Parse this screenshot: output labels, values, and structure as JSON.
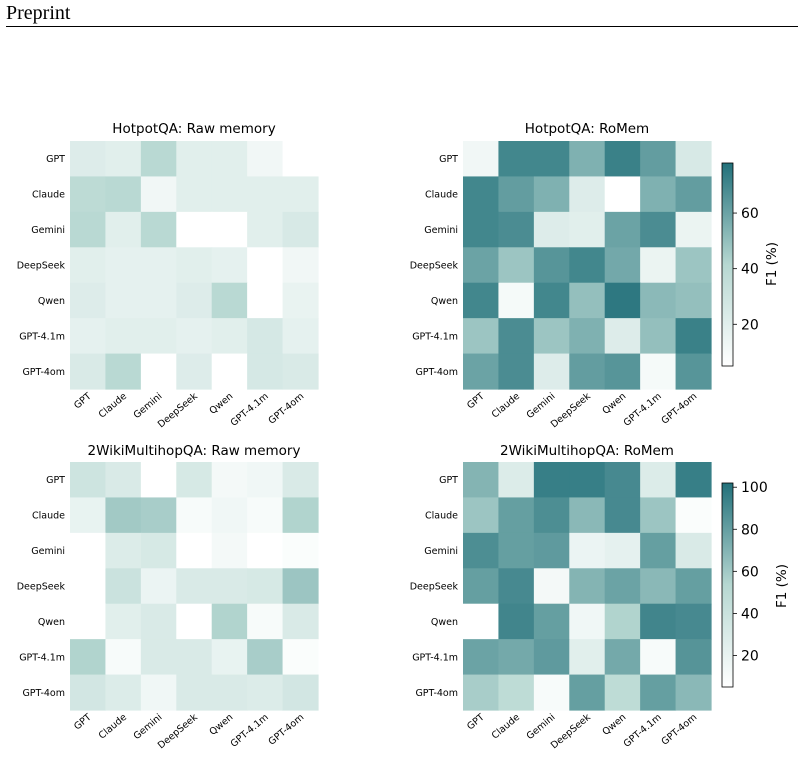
{
  "header": {
    "label": "Preprint"
  },
  "colorscale": {
    "low": "#ffffff",
    "mid": "#b6d7d1",
    "high": "#22707a"
  },
  "chart_data": [
    {
      "type": "heatmap",
      "title": "HotpotQA: Raw memory",
      "rows": [
        "GPT",
        "Claude",
        "Gemini",
        "DeepSeek",
        "Qwen",
        "GPT-4.1m",
        "GPT-4om"
      ],
      "cols": [
        "GPT",
        "Claude",
        "Gemini",
        "DeepSeek",
        "Qwen",
        "GPT-4.1m",
        "GPT-4om"
      ],
      "values": [
        [
          22,
          20,
          40,
          20,
          20,
          12,
          5
        ],
        [
          38,
          40,
          12,
          20,
          20,
          20,
          20
        ],
        [
          40,
          20,
          40,
          3,
          5,
          20,
          25
        ],
        [
          20,
          18,
          18,
          20,
          18,
          3,
          12
        ],
        [
          22,
          18,
          18,
          22,
          40,
          3,
          16
        ],
        [
          18,
          20,
          20,
          18,
          20,
          26,
          18
        ],
        [
          24,
          40,
          3,
          22,
          5,
          26,
          24
        ]
      ],
      "vmin": 5,
      "vmax": 78
    },
    {
      "type": "heatmap",
      "title": "HotpotQA: RoMem",
      "rows": [
        "GPT",
        "Claude",
        "Gemini",
        "DeepSeek",
        "Qwen",
        "GPT-4.1m",
        "GPT-4om"
      ],
      "cols": [
        "GPT",
        "Claude",
        "Gemini",
        "DeepSeek",
        "Qwen",
        "GPT-4.1m",
        "GPT-4om"
      ],
      "values": [
        [
          12,
          70,
          70,
          55,
          72,
          62,
          25
        ],
        [
          70,
          62,
          55,
          22,
          5,
          55,
          62
        ],
        [
          70,
          68,
          22,
          20,
          60,
          68,
          15
        ],
        [
          60,
          48,
          65,
          70,
          58,
          15,
          48
        ],
        [
          70,
          10,
          70,
          50,
          75,
          52,
          50
        ],
        [
          48,
          68,
          48,
          55,
          22,
          50,
          72
        ],
        [
          60,
          68,
          22,
          62,
          65,
          10,
          65
        ]
      ],
      "colorbar": {
        "label": "F1 (%)",
        "ticks": [
          20,
          40,
          60
        ]
      },
      "vmin": 5,
      "vmax": 78
    },
    {
      "type": "heatmap",
      "title": "2WikiMultihopQA: Raw memory",
      "rows": [
        "GPT",
        "Claude",
        "Gemini",
        "DeepSeek",
        "Qwen",
        "GPT-4.1m",
        "GPT-4om"
      ],
      "cols": [
        "GPT",
        "Claude",
        "Gemini",
        "DeepSeek",
        "Qwen",
        "GPT-4.1m",
        "GPT-4om"
      ],
      "values": [
        [
          38,
          30,
          5,
          32,
          12,
          15,
          30
        ],
        [
          20,
          60,
          58,
          10,
          15,
          10,
          55
        ],
        [
          5,
          28,
          32,
          5,
          12,
          5,
          8
        ],
        [
          5,
          40,
          18,
          30,
          30,
          32,
          62
        ],
        [
          5,
          25,
          30,
          5,
          55,
          10,
          30
        ],
        [
          55,
          10,
          30,
          30,
          20,
          58,
          8
        ],
        [
          35,
          28,
          15,
          30,
          30,
          28,
          35
        ]
      ],
      "vmin": 5,
      "vmax": 102
    },
    {
      "type": "heatmap",
      "title": "2WikiMultihopQA: RoMem",
      "rows": [
        "GPT",
        "Claude",
        "Gemini",
        "DeepSeek",
        "Qwen",
        "GPT-4.1m",
        "GPT-4om"
      ],
      "cols": [
        "GPT",
        "Claude",
        "Gemini",
        "DeepSeek",
        "Qwen",
        "GPT-4.1m",
        "GPT-4om"
      ],
      "values": [
        [
          70,
          28,
          95,
          95,
          90,
          28,
          95
        ],
        [
          62,
          80,
          88,
          68,
          90,
          62,
          8
        ],
        [
          88,
          80,
          82,
          18,
          22,
          80,
          30
        ],
        [
          80,
          90,
          12,
          70,
          78,
          68,
          80
        ],
        [
          5,
          92,
          80,
          15,
          55,
          92,
          90
        ],
        [
          78,
          75,
          82,
          25,
          75,
          10,
          85
        ],
        [
          58,
          48,
          10,
          80,
          48,
          80,
          68
        ]
      ],
      "colorbar": {
        "label": "F1 (%)",
        "ticks": [
          20,
          40,
          60,
          80,
          100
        ]
      },
      "vmin": 5,
      "vmax": 102
    }
  ]
}
